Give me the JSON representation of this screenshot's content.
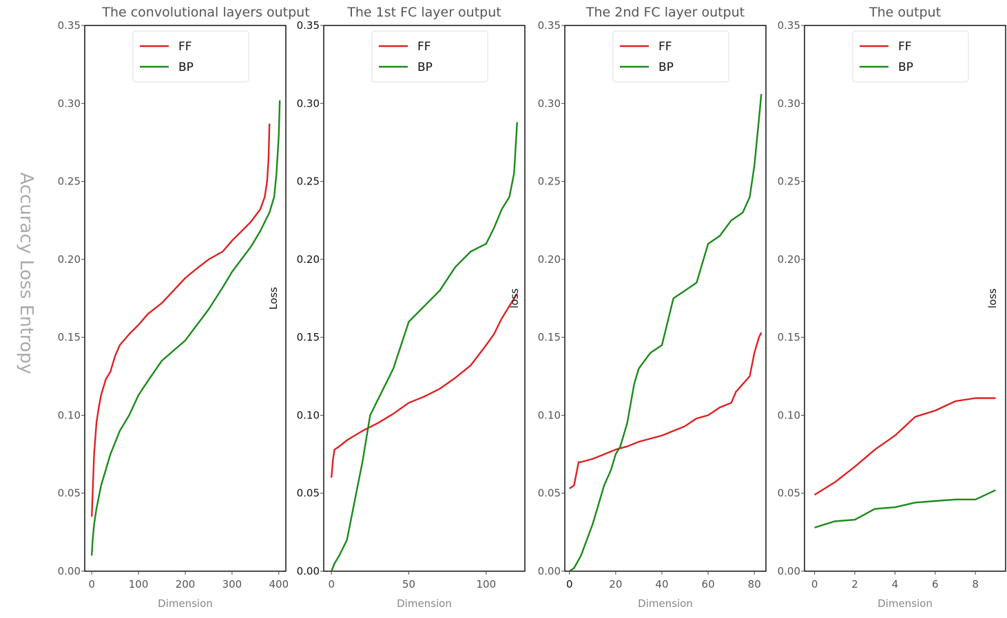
{
  "figure_ylabel": "Accuracy Loss Entropy",
  "chart_data": [
    {
      "type": "line",
      "title": "The convolutional layers output",
      "xlabel": "Dimension",
      "ylabel": "",
      "xlim": [
        -15,
        415
      ],
      "ylim": [
        0,
        0.35
      ],
      "xticks": [
        0,
        100,
        200,
        300,
        400
      ],
      "yticks": [
        0,
        0.05,
        0.1,
        0.15,
        0.2,
        0.25,
        0.3,
        0.35
      ],
      "ytick_labels": [
        "0.00",
        "0.05",
        "0.10",
        "0.15",
        "0.20",
        "0.25",
        "0.30",
        "0.35"
      ],
      "legend_loc": "upper center",
      "series": [
        {
          "name": "FF",
          "color": "#e02020",
          "x": [
            0,
            2,
            5,
            10,
            15,
            20,
            30,
            40,
            50,
            60,
            80,
            100,
            120,
            150,
            200,
            220,
            250,
            280,
            300,
            320,
            340,
            360,
            370,
            375,
            378,
            380
          ],
          "y": [
            0.035,
            0.05,
            0.075,
            0.095,
            0.105,
            0.113,
            0.123,
            0.128,
            0.138,
            0.145,
            0.152,
            0.158,
            0.165,
            0.172,
            0.188,
            0.193,
            0.2,
            0.205,
            0.212,
            0.218,
            0.224,
            0.232,
            0.24,
            0.25,
            0.265,
            0.287
          ]
        },
        {
          "name": "BP",
          "color": "#1a8a1a",
          "x": [
            0,
            2,
            5,
            10,
            20,
            40,
            60,
            80,
            100,
            120,
            150,
            200,
            220,
            250,
            280,
            300,
            320,
            340,
            360,
            380,
            390,
            395,
            400,
            402
          ],
          "y": [
            0.01,
            0.02,
            0.03,
            0.04,
            0.055,
            0.075,
            0.09,
            0.1,
            0.113,
            0.122,
            0.135,
            0.148,
            0.156,
            0.168,
            0.182,
            0.192,
            0.2,
            0.208,
            0.218,
            0.23,
            0.24,
            0.255,
            0.28,
            0.302
          ]
        }
      ]
    },
    {
      "type": "line",
      "title": "The 1st FC layer output",
      "xlabel": "Dimension",
      "ylabel": "Loss",
      "xlim": [
        -5,
        125
      ],
      "ylim": [
        0,
        0.35
      ],
      "xticks": [
        0,
        50,
        100
      ],
      "yticks": [
        0,
        0.05,
        0.1,
        0.15,
        0.2,
        0.25,
        0.3,
        0.35
      ],
      "ytick_labels": [
        "0.00",
        "0.05",
        "0.10",
        "0.15",
        "0.20",
        "0.25",
        "0.30",
        "0.35"
      ],
      "legend_loc": "upper center",
      "series": [
        {
          "name": "FF",
          "color": "#e02020",
          "x": [
            0,
            1,
            2,
            5,
            10,
            20,
            30,
            40,
            50,
            60,
            70,
            80,
            90,
            100,
            105,
            110,
            115,
            120
          ],
          "y": [
            0.06,
            0.072,
            0.078,
            0.08,
            0.084,
            0.09,
            0.095,
            0.101,
            0.108,
            0.112,
            0.117,
            0.124,
            0.132,
            0.145,
            0.152,
            0.162,
            0.17,
            0.178
          ]
        },
        {
          "name": "BP",
          "color": "#1a8a1a",
          "x": [
            0,
            2,
            5,
            10,
            15,
            20,
            25,
            30,
            40,
            50,
            60,
            70,
            80,
            90,
            100,
            105,
            110,
            115,
            118,
            120
          ],
          "y": [
            0,
            0.005,
            0.01,
            0.02,
            0.045,
            0.07,
            0.1,
            0.11,
            0.13,
            0.16,
            0.17,
            0.18,
            0.195,
            0.205,
            0.21,
            0.22,
            0.232,
            0.24,
            0.255,
            0.288
          ]
        }
      ]
    },
    {
      "type": "line",
      "title": "The 2nd FC layer output",
      "xlabel": "Dimension",
      "ylabel": "loss",
      "xlim": [
        -2,
        85
      ],
      "ylim": [
        0,
        0.35
      ],
      "xticks": [
        0,
        20,
        40,
        60,
        80
      ],
      "yticks": [
        0,
        0.05,
        0.1,
        0.15,
        0.2,
        0.25,
        0.3,
        0.35
      ],
      "ytick_labels": [
        "0.00",
        "0.05",
        "0.10",
        "0.15",
        "0.20",
        "0.25",
        "0.30",
        "0.35"
      ],
      "legend_loc": "upper center",
      "series": [
        {
          "name": "FF",
          "color": "#e02020",
          "x": [
            0,
            2,
            4,
            5,
            10,
            15,
            20,
            25,
            30,
            35,
            40,
            45,
            50,
            55,
            60,
            65,
            70,
            72,
            75,
            78,
            80,
            82,
            83
          ],
          "y": [
            0.053,
            0.055,
            0.07,
            0.07,
            0.072,
            0.075,
            0.078,
            0.08,
            0.083,
            0.085,
            0.087,
            0.09,
            0.093,
            0.098,
            0.1,
            0.105,
            0.108,
            0.115,
            0.12,
            0.125,
            0.14,
            0.15,
            0.153
          ]
        },
        {
          "name": "BP",
          "color": "#1a8a1a",
          "x": [
            0,
            2,
            5,
            10,
            15,
            18,
            20,
            22,
            25,
            28,
            30,
            35,
            40,
            45,
            50,
            55,
            60,
            65,
            70,
            75,
            78,
            80,
            82,
            83
          ],
          "y": [
            0,
            0.002,
            0.01,
            0.03,
            0.055,
            0.065,
            0.075,
            0.08,
            0.095,
            0.12,
            0.13,
            0.14,
            0.145,
            0.175,
            0.18,
            0.185,
            0.21,
            0.215,
            0.225,
            0.23,
            0.24,
            0.26,
            0.29,
            0.306
          ]
        }
      ]
    },
    {
      "type": "line",
      "title": "The output",
      "xlabel": "Dimension",
      "ylabel": "loss",
      "xlim": [
        -0.5,
        9.5
      ],
      "ylim": [
        0,
        0.35
      ],
      "xticks": [
        0,
        2,
        4,
        6,
        8
      ],
      "yticks": [
        0,
        0.05,
        0.1,
        0.15,
        0.2,
        0.25,
        0.3,
        0.35
      ],
      "ytick_labels": [
        "0.00",
        "0.05",
        "0.10",
        "0.15",
        "0.20",
        "0.25",
        "0.30",
        "0.35"
      ],
      "legend_loc": "upper center",
      "series": [
        {
          "name": "FF",
          "color": "#e02020",
          "x": [
            0,
            1,
            2,
            3,
            4,
            5,
            6,
            7,
            8,
            9
          ],
          "y": [
            0.049,
            0.057,
            0.067,
            0.078,
            0.087,
            0.099,
            0.103,
            0.109,
            0.111,
            0.111
          ]
        },
        {
          "name": "BP",
          "color": "#1a8a1a",
          "x": [
            0,
            1,
            2,
            3,
            4,
            5,
            6,
            7,
            8,
            9
          ],
          "y": [
            0.028,
            0.032,
            0.033,
            0.04,
            0.041,
            0.044,
            0.045,
            0.046,
            0.046,
            0.052
          ]
        }
      ]
    }
  ]
}
